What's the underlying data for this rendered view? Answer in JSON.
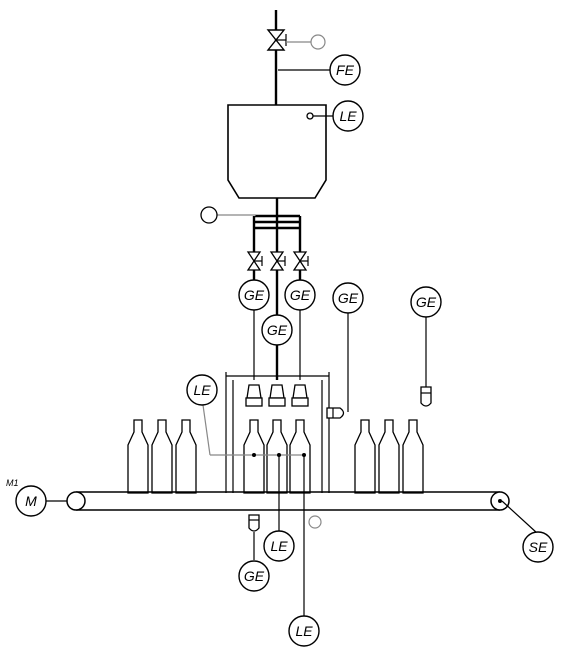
{
  "instruments": {
    "fe": "FE",
    "le_tank": "LE",
    "ge_valve_left": "GE",
    "ge_valve_right": "GE",
    "ge_center": "GE",
    "ge_side": "GE",
    "ge_right": "GE",
    "le_fill": "LE",
    "le_bottom_1": "LE",
    "ge_bottom": "GE",
    "le_bottom_2": "LE",
    "se": "SE",
    "motor": "M"
  },
  "motor_tag": "M1"
}
